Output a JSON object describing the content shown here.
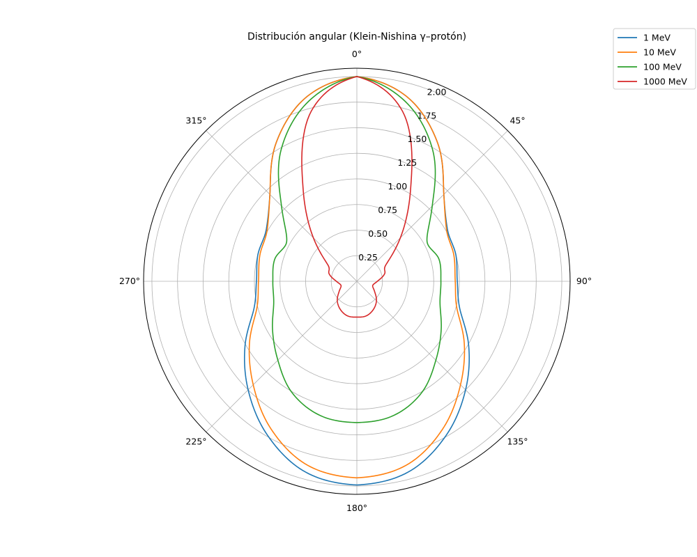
{
  "chart_data": {
    "type": "line",
    "subtype": "polar",
    "title": "Distribución angular (Klein-Nishina γ–protón)",
    "theta_zero_location": "top",
    "theta_direction": "clockwise",
    "theta_ticks_deg": [
      0,
      45,
      90,
      135,
      180,
      225,
      270,
      315
    ],
    "theta_tick_labels": [
      "0°",
      "45°",
      "90°",
      "135°",
      "180°",
      "225°",
      "270°",
      "315°"
    ],
    "rlim": [
      0,
      2.0811
    ],
    "r_ticks": [
      0.25,
      0.5,
      0.75,
      1.0,
      1.25,
      1.5,
      1.75,
      2.0
    ],
    "r_tick_labels": [
      "0.25",
      "0.50",
      "0.75",
      "1.00",
      "1.25",
      "1.50",
      "1.75",
      "2.00"
    ],
    "grid": true,
    "legend_position": "top-right, outside",
    "x": [
      0,
      15,
      30,
      45,
      60,
      75,
      90,
      105,
      120,
      135,
      150,
      165,
      180
    ],
    "series": [
      {
        "name": "1 MeV",
        "color": "#1f77b4",
        "values": [
          2.0,
          1.87,
          1.57,
          1.2,
          1.02,
          1.0,
          0.98,
          1.04,
          1.26,
          1.5,
          1.74,
          1.93,
          1.99
        ]
      },
      {
        "name": "10 MeV",
        "color": "#ff7f0e",
        "values": [
          2.0,
          1.87,
          1.57,
          1.2,
          1.01,
          0.98,
          0.96,
          1.01,
          1.21,
          1.43,
          1.67,
          1.86,
          1.92
        ]
      },
      {
        "name": "100 MeV",
        "color": "#2ca02c",
        "values": [
          2.0,
          1.82,
          1.48,
          1.04,
          0.79,
          0.83,
          0.82,
          0.84,
          0.95,
          1.09,
          1.26,
          1.36,
          1.38
        ]
      },
      {
        "name": "1000 MeV",
        "color": "#d62728",
        "values": [
          2.0,
          1.72,
          1.05,
          0.6,
          0.33,
          0.28,
          0.2,
          0.16,
          0.2,
          0.27,
          0.32,
          0.35,
          0.35
        ]
      }
    ]
  }
}
